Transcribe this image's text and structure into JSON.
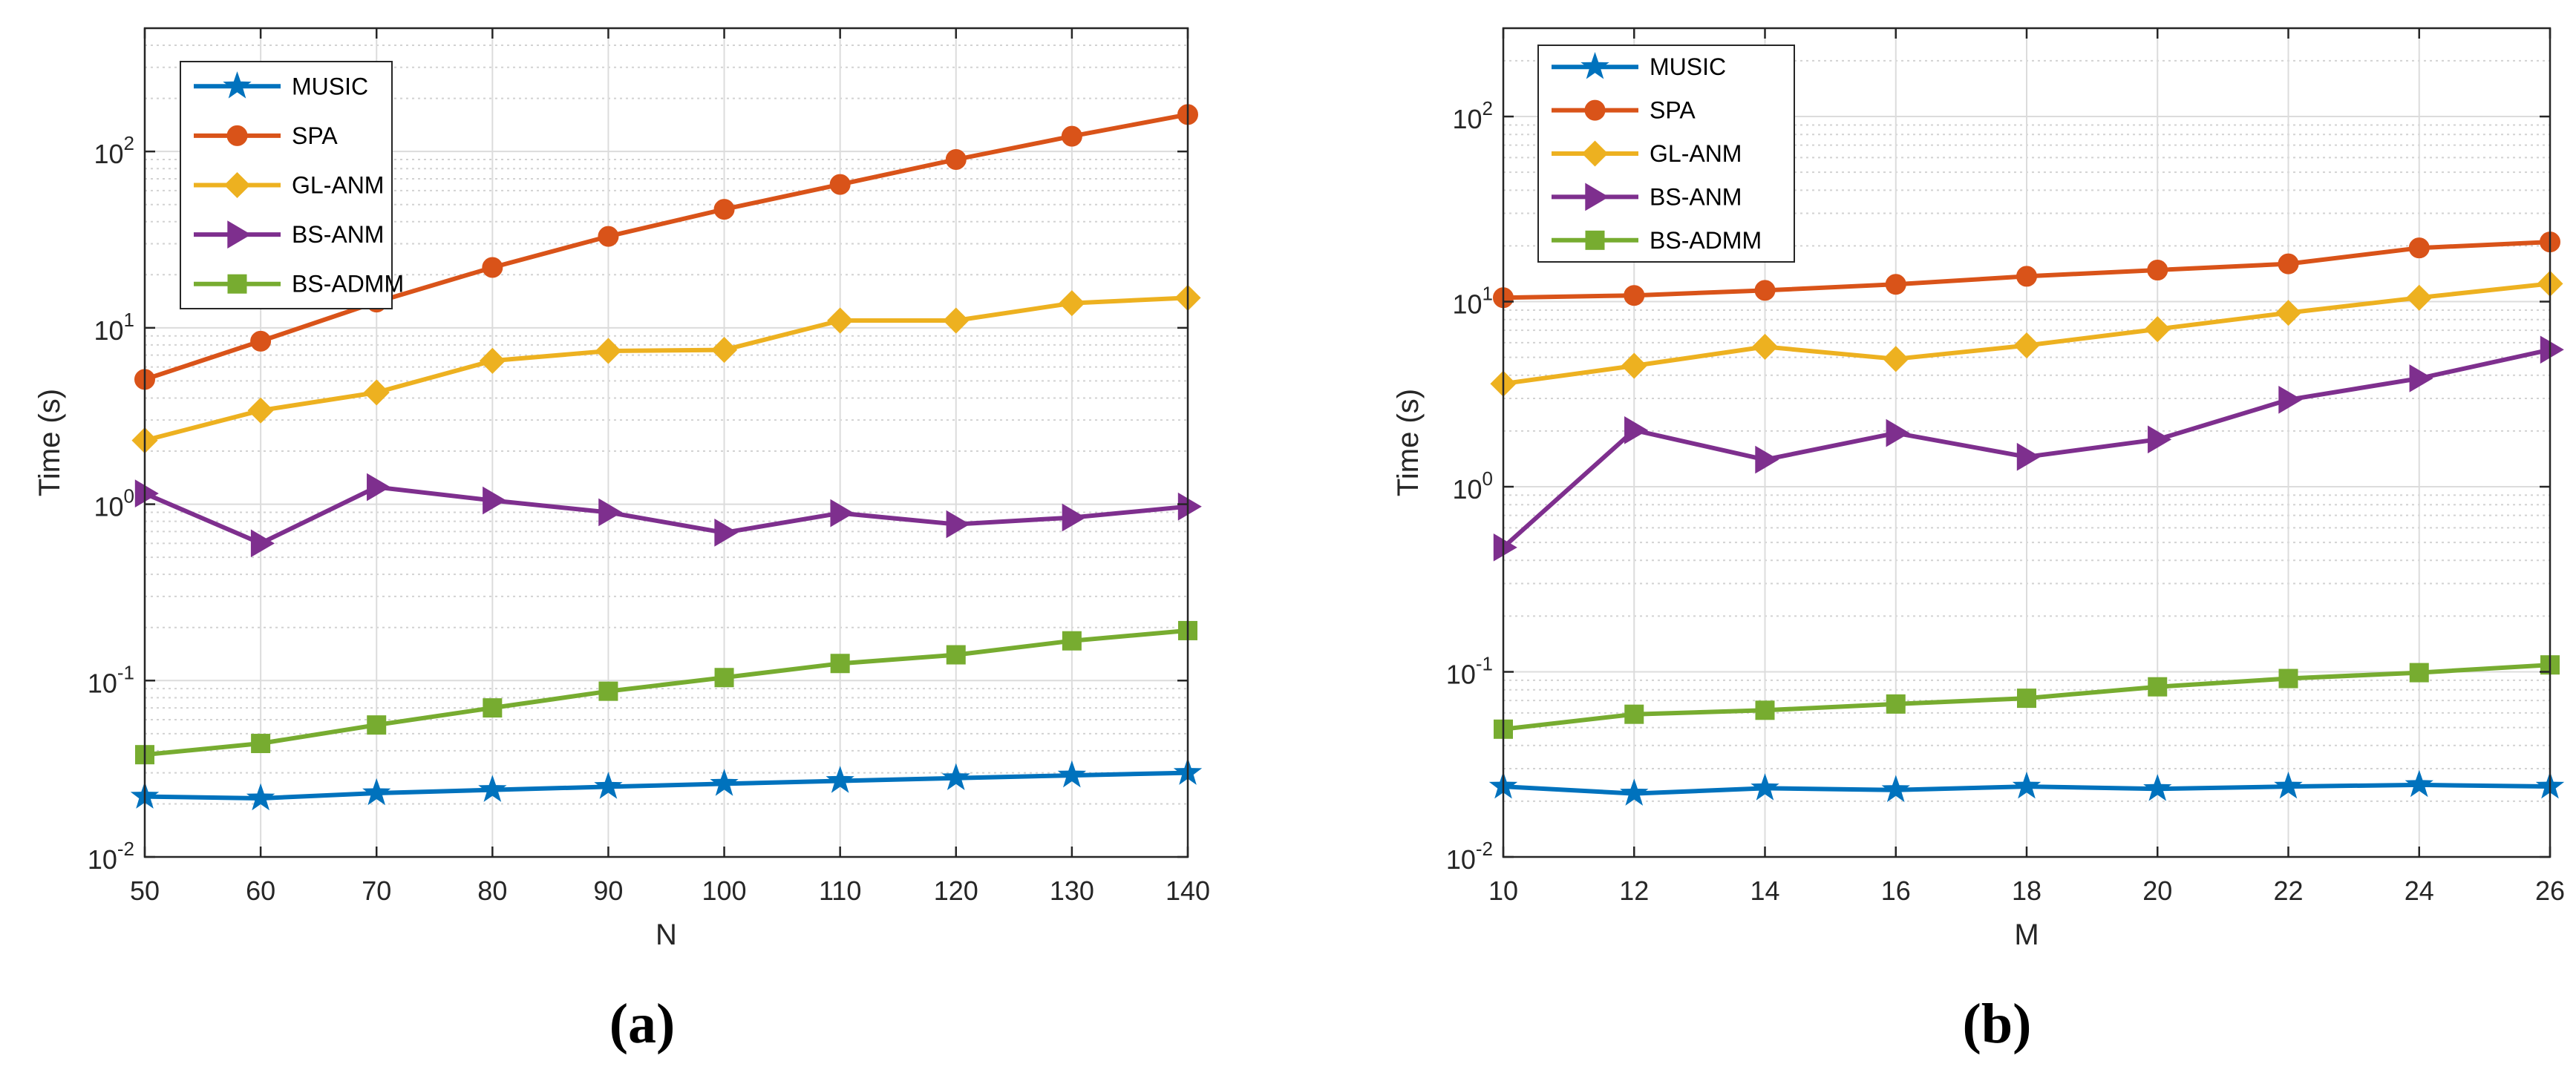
{
  "chart_data": [
    {
      "type": "line",
      "caption": "(a)",
      "xlabel": "N",
      "ylabel": "Time (s)",
      "yscale": "log",
      "xlim": [
        50,
        140
      ],
      "ylim": [
        0.01,
        500
      ],
      "x": [
        50,
        60,
        70,
        80,
        90,
        100,
        110,
        120,
        130,
        140
      ],
      "xticks": [
        "50",
        "60",
        "70",
        "80",
        "90",
        "100",
        "110",
        "120",
        "130",
        "140"
      ],
      "yticks": [
        {
          "value": 0.01,
          "base": "10",
          "exp": "-2"
        },
        {
          "value": 0.1,
          "base": "10",
          "exp": "-1"
        },
        {
          "value": 1,
          "base": "10",
          "exp": "0"
        },
        {
          "value": 10,
          "base": "10",
          "exp": "1"
        },
        {
          "value": 100,
          "base": "10",
          "exp": "2"
        }
      ],
      "grid": true,
      "legend_position": "top-left",
      "series": [
        {
          "name": "MUSIC",
          "marker": "star",
          "color": "#0072BD",
          "values": [
            0.022,
            0.0215,
            0.023,
            0.024,
            0.025,
            0.026,
            0.027,
            0.028,
            0.029,
            0.03
          ]
        },
        {
          "name": "SPA",
          "marker": "circle",
          "color": "#D95319",
          "values": [
            5.1,
            8.4,
            14,
            22,
            33,
            47,
            65,
            90,
            122,
            162
          ]
        },
        {
          "name": "GL-ANM",
          "marker": "diamond",
          "color": "#EDB120",
          "values": [
            2.3,
            3.4,
            4.3,
            6.5,
            7.4,
            7.5,
            11,
            11,
            13.8,
            14.8
          ]
        },
        {
          "name": "BS-ANM",
          "marker": "triangle-right",
          "color": "#7E2F8E",
          "values": [
            1.15,
            0.6,
            1.25,
            1.05,
            0.9,
            0.69,
            0.89,
            0.77,
            0.84,
            0.97
          ]
        },
        {
          "name": "BS-ADMM",
          "marker": "square",
          "color": "#77AC30",
          "values": [
            0.038,
            0.044,
            0.056,
            0.07,
            0.087,
            0.104,
            0.125,
            0.14,
            0.168,
            0.192
          ]
        }
      ]
    },
    {
      "type": "line",
      "caption": "(b)",
      "xlabel": "M",
      "ylabel": "Time (s)",
      "yscale": "log",
      "xlim": [
        10,
        26
      ],
      "ylim": [
        0.01,
        300
      ],
      "x": [
        10,
        12,
        14,
        16,
        18,
        20,
        22,
        24,
        26
      ],
      "xticks": [
        "10",
        "12",
        "14",
        "16",
        "18",
        "20",
        "22",
        "24",
        "26"
      ],
      "yticks": [
        {
          "value": 0.01,
          "base": "10",
          "exp": "-2"
        },
        {
          "value": 0.1,
          "base": "10",
          "exp": "-1"
        },
        {
          "value": 1,
          "base": "10",
          "exp": "0"
        },
        {
          "value": 10,
          "base": "10",
          "exp": "1"
        },
        {
          "value": 100,
          "base": "10",
          "exp": "2"
        }
      ],
      "grid": true,
      "legend_position": "top-left",
      "series": [
        {
          "name": "MUSIC",
          "marker": "star",
          "color": "#0072BD",
          "values": [
            0.024,
            0.022,
            0.0235,
            0.023,
            0.024,
            0.0233,
            0.024,
            0.0245,
            0.024
          ]
        },
        {
          "name": "SPA",
          "marker": "circle",
          "color": "#D95319",
          "values": [
            10.5,
            10.8,
            11.5,
            12.4,
            13.7,
            14.8,
            16,
            19.5,
            21
          ]
        },
        {
          "name": "GL-ANM",
          "marker": "diamond",
          "color": "#EDB120",
          "values": [
            3.6,
            4.5,
            5.7,
            4.9,
            5.8,
            7.1,
            8.7,
            10.5,
            12.5
          ]
        },
        {
          "name": "BS-ANM",
          "marker": "triangle-right",
          "color": "#7E2F8E",
          "values": [
            0.47,
            2.02,
            1.4,
            1.95,
            1.45,
            1.8,
            2.95,
            3.85,
            5.5
          ]
        },
        {
          "name": "BS-ADMM",
          "marker": "square",
          "color": "#77AC30",
          "values": [
            0.049,
            0.059,
            0.062,
            0.067,
            0.072,
            0.083,
            0.092,
            0.099,
            0.109
          ]
        }
      ]
    }
  ]
}
